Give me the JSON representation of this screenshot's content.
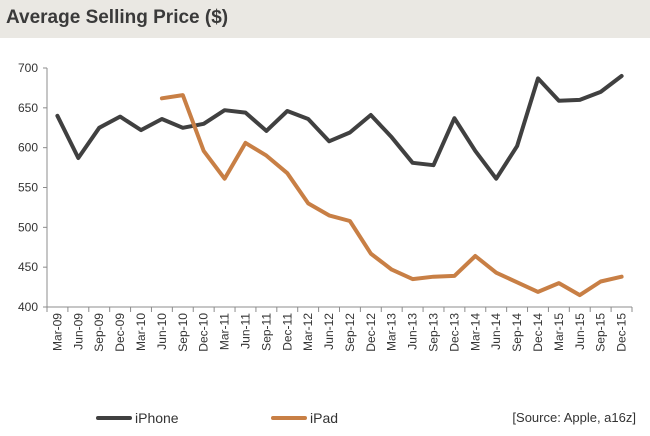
{
  "header": {
    "title": "Average Selling Price ($)"
  },
  "chart_data": {
    "type": "line",
    "title": "Average Selling Price ($)",
    "xlabel": "",
    "ylabel": "",
    "ylim": [
      400,
      700
    ],
    "yticks": [
      400,
      450,
      500,
      550,
      600,
      650,
      700
    ],
    "grid": false,
    "legend_position": "bottom",
    "categories": [
      "Mar-09",
      "Jun-09",
      "Sep-09",
      "Dec-09",
      "Mar-10",
      "Jun-10",
      "Sep-10",
      "Dec-10",
      "Mar-11",
      "Jun-11",
      "Sep-11",
      "Dec-11",
      "Mar-12",
      "Jun-12",
      "Sep-12",
      "Dec-12",
      "Mar-13",
      "Jun-13",
      "Sep-13",
      "Dec-13",
      "Mar-14",
      "Jun-14",
      "Sep-14",
      "Dec-14",
      "Mar-15",
      "Jun-15",
      "Sep-15",
      "Dec-15"
    ],
    "series": [
      {
        "name": "iPhone",
        "color": "#404040",
        "values": [
          640,
          587,
          625,
          639,
          622,
          636,
          625,
          630,
          647,
          644,
          621,
          646,
          636,
          608,
          619,
          641,
          613,
          581,
          578,
          637,
          596,
          561,
          602,
          687,
          659,
          660,
          670,
          690
        ]
      },
      {
        "name": "iPad",
        "color": "#c87f45",
        "values": [
          null,
          null,
          null,
          null,
          null,
          662,
          666,
          596,
          561,
          606,
          590,
          568,
          530,
          515,
          508,
          467,
          447,
          435,
          438,
          439,
          464,
          443,
          431,
          419,
          430,
          415,
          432,
          438
        ]
      }
    ]
  },
  "legend": {
    "iphone_label": "iPhone",
    "ipad_label": "iPad"
  },
  "source_note": "[Source: Apple, a16z]"
}
